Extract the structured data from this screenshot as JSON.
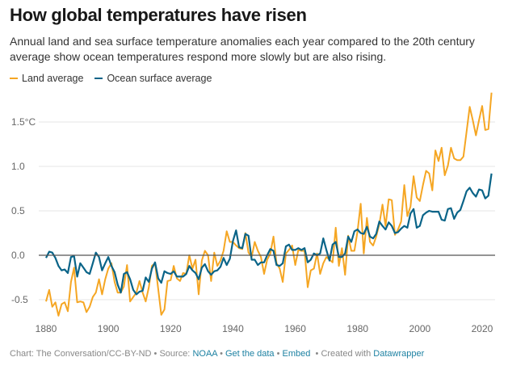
{
  "title": "How global temperatures have risen",
  "subtitle": "Annual land and sea surface temperature anomalies each year compared to the 20th century average show ocean temperatures respond more slowly but are also rising.",
  "footer": {
    "chart_credit": "Chart: The Conversation/CC-BY-ND",
    "source_label": "Source:",
    "source_link": "NOAA",
    "get_data": "Get the data",
    "embed": "Embed",
    "created_with": "Created with",
    "datawrapper": "Datawrapper",
    "sep": "•"
  },
  "colors": {
    "land": "#f5a623",
    "ocean": "#0a6488",
    "zero_line": "#555555",
    "grid": "#e5e5e5"
  },
  "chart_data": {
    "type": "line",
    "title": "How global temperatures have risen",
    "xlim": [
      1880,
      2023
    ],
    "ylim": [
      -0.65,
      1.85
    ],
    "grid": true,
    "legend_placement": "top-left",
    "y_ticks": [
      {
        "value": 1.5,
        "label": "1.5°C"
      },
      {
        "value": 1.0,
        "label": "1.0"
      },
      {
        "value": 0.5,
        "label": "0.5"
      },
      {
        "value": 0.0,
        "label": "0.0"
      },
      {
        "value": -0.5,
        "label": "-0.5"
      }
    ],
    "x_ticks": [
      "1880",
      "1900",
      "1920",
      "1940",
      "1960",
      "1980",
      "2000",
      "2020"
    ],
    "x_start": 1880,
    "series": [
      {
        "name": "Land average",
        "color": "#f5a623",
        "values": [
          -0.52,
          -0.39,
          -0.58,
          -0.53,
          -0.68,
          -0.55,
          -0.53,
          -0.63,
          -0.3,
          -0.14,
          -0.53,
          -0.52,
          -0.53,
          -0.64,
          -0.58,
          -0.47,
          -0.42,
          -0.27,
          -0.44,
          -0.27,
          -0.15,
          -0.09,
          -0.3,
          -0.42,
          -0.42,
          -0.35,
          -0.11,
          -0.52,
          -0.47,
          -0.42,
          -0.29,
          -0.42,
          -0.52,
          -0.36,
          -0.12,
          -0.09,
          -0.38,
          -0.67,
          -0.61,
          -0.29,
          -0.28,
          -0.12,
          -0.26,
          -0.29,
          -0.2,
          -0.21,
          0.0,
          -0.15,
          -0.05,
          -0.44,
          -0.06,
          0.05,
          0.0,
          -0.29,
          0.03,
          -0.12,
          -0.06,
          0.05,
          0.27,
          0.15,
          0.15,
          0.11,
          0.08,
          0.07,
          0.25,
          0.03,
          -0.02,
          0.15,
          0.05,
          -0.02,
          -0.21,
          -0.05,
          0.02,
          0.21,
          -0.09,
          -0.15,
          -0.3,
          0.02,
          0.06,
          0.11,
          -0.11,
          0.06,
          0.05,
          0.05,
          -0.36,
          -0.17,
          -0.15,
          0.02,
          -0.21,
          -0.09,
          -0.02,
          -0.05,
          -0.08,
          0.31,
          -0.12,
          0.08,
          -0.22,
          0.22,
          0.05,
          0.05,
          0.27,
          0.58,
          0.02,
          0.42,
          0.15,
          0.11,
          0.21,
          0.35,
          0.57,
          0.33,
          0.63,
          0.62,
          0.23,
          0.29,
          0.38,
          0.79,
          0.44,
          0.55,
          0.89,
          0.65,
          0.61,
          0.79,
          0.95,
          0.92,
          0.73,
          1.18,
          1.06,
          1.21,
          0.9,
          1.01,
          1.21,
          1.09,
          1.07,
          1.07,
          1.11,
          1.39,
          1.67,
          1.52,
          1.35,
          1.52,
          1.68,
          1.41,
          1.42,
          1.83
        ]
      },
      {
        "name": "Ocean surface average",
        "color": "#0a6488",
        "values": [
          -0.03,
          0.04,
          0.03,
          -0.03,
          -0.12,
          -0.17,
          -0.16,
          -0.2,
          -0.02,
          -0.01,
          -0.24,
          -0.09,
          -0.14,
          -0.19,
          -0.21,
          -0.09,
          0.03,
          -0.02,
          -0.17,
          -0.09,
          -0.02,
          -0.12,
          -0.19,
          -0.33,
          -0.42,
          -0.21,
          -0.19,
          -0.27,
          -0.39,
          -0.44,
          -0.41,
          -0.4,
          -0.25,
          -0.3,
          -0.15,
          -0.08,
          -0.26,
          -0.31,
          -0.18,
          -0.2,
          -0.21,
          -0.18,
          -0.24,
          -0.24,
          -0.24,
          -0.21,
          -0.12,
          -0.17,
          -0.2,
          -0.27,
          -0.14,
          -0.1,
          -0.18,
          -0.22,
          -0.18,
          -0.17,
          -0.13,
          -0.03,
          -0.11,
          -0.04,
          0.16,
          0.28,
          0.09,
          0.08,
          0.24,
          0.22,
          -0.05,
          -0.05,
          -0.11,
          -0.08,
          -0.08,
          0.0,
          0.07,
          0.05,
          -0.11,
          -0.12,
          -0.09,
          0.1,
          0.12,
          0.06,
          0.06,
          0.08,
          0.06,
          0.08,
          -0.08,
          -0.05,
          0.02,
          0.0,
          0.02,
          0.19,
          0.06,
          -0.06,
          0.12,
          0.15,
          -0.02,
          -0.02,
          0.02,
          0.21,
          0.15,
          0.27,
          0.29,
          0.25,
          0.24,
          0.32,
          0.21,
          0.19,
          0.24,
          0.38,
          0.33,
          0.29,
          0.37,
          0.33,
          0.25,
          0.26,
          0.3,
          0.33,
          0.31,
          0.47,
          0.52,
          0.31,
          0.33,
          0.45,
          0.48,
          0.5,
          0.49,
          0.49,
          0.49,
          0.4,
          0.39,
          0.52,
          0.53,
          0.41,
          0.48,
          0.51,
          0.61,
          0.72,
          0.76,
          0.7,
          0.66,
          0.74,
          0.73,
          0.64,
          0.67,
          0.92
        ]
      }
    ]
  }
}
